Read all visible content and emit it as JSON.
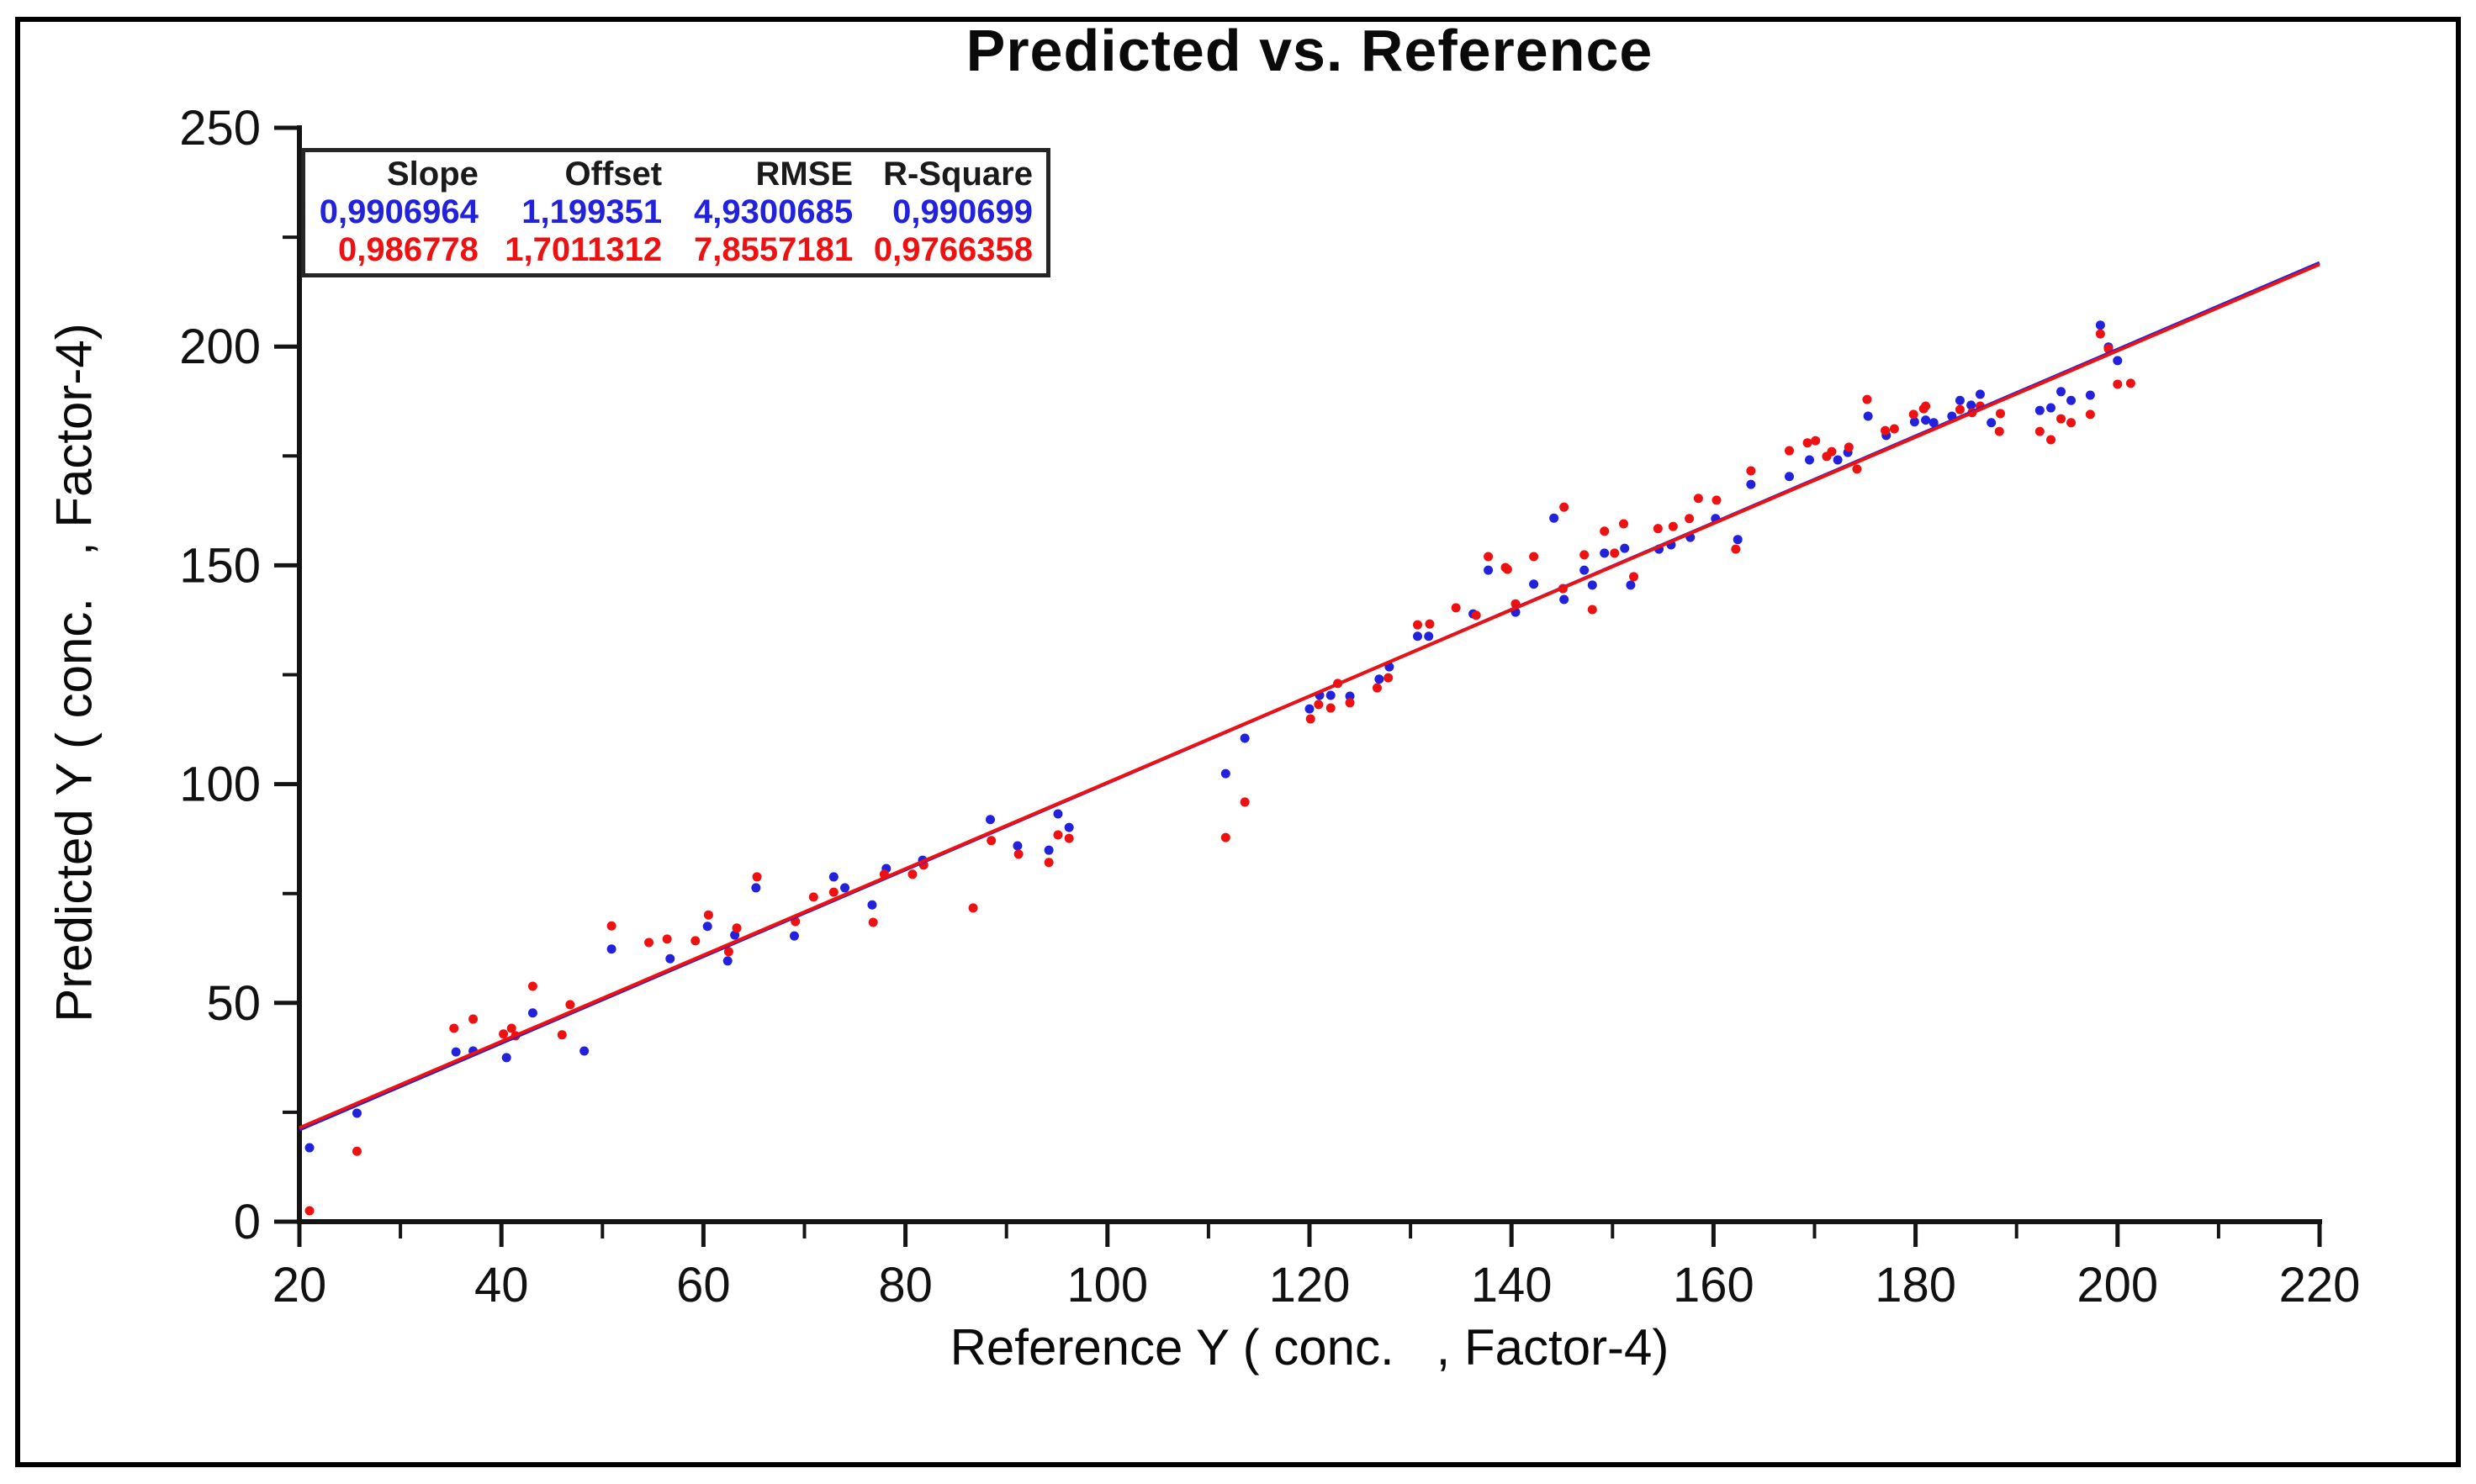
{
  "title": "Predicted vs. Reference",
  "colors": {
    "background": "#ffffff",
    "frame_border": "#000000",
    "axis": "#141414",
    "blue_series": "#2222dd",
    "red_series": "#ee1111"
  },
  "stats_table": {
    "headers": [
      "Slope",
      "Offset",
      "RMSE",
      "R-Square"
    ],
    "rows": [
      {
        "color": "#2222dd",
        "values": [
          "0,9906964",
          "1,199351",
          "4,9300685",
          "0,990699"
        ]
      },
      {
        "color": "#ee1111",
        "values": [
          "0,986778",
          "1,7011312",
          "7,8557181",
          "0,9766358"
        ]
      }
    ]
  },
  "chart_data": {
    "type": "scatter",
    "title": "Predicted vs. Reference",
    "xlabel": "Reference Y ( conc.   , Factor-4)",
    "ylabel": "Predicted Y ( conc.   , Factor-4)",
    "xlim": [
      20,
      220
    ],
    "ylim": [
      0,
      250
    ],
    "grid": false,
    "legend_position": "none",
    "axis_color": "#141414",
    "x_ticks_major": [
      20,
      40,
      60,
      80,
      100,
      120,
      140,
      160,
      180,
      200,
      220
    ],
    "x_ticks_minor": [
      30,
      50,
      70,
      90,
      110,
      130,
      150,
      170,
      190,
      210
    ],
    "y_ticks_major": [
      0,
      50,
      100,
      150,
      200,
      250
    ],
    "y_ticks_minor": [
      25,
      75,
      125,
      175,
      225
    ],
    "series": [
      {
        "name": "blue-series",
        "color": "#2222dd",
        "fit": {
          "slope": 0.9906964,
          "offset": 1.199351,
          "rmse": 4.9300685,
          "r_square": 0.990699
        },
        "points": [
          [
            21.0,
            16.9
          ],
          [
            25.7,
            24.8
          ],
          [
            35.5,
            38.8
          ],
          [
            37.2,
            39.0
          ],
          [
            40.5,
            37.5
          ],
          [
            43.1,
            47.7
          ],
          [
            48.2,
            39.0
          ],
          [
            50.9,
            62.3
          ],
          [
            56.7,
            60.1
          ],
          [
            60.4,
            67.5
          ],
          [
            62.4,
            59.6
          ],
          [
            63.1,
            65.5
          ],
          [
            65.2,
            76.3
          ],
          [
            69.0,
            65.3
          ],
          [
            72.9,
            78.8
          ],
          [
            74.0,
            76.3
          ],
          [
            76.7,
            72.4
          ],
          [
            78.1,
            80.7
          ],
          [
            81.7,
            82.6
          ],
          [
            88.4,
            91.9
          ],
          [
            91.1,
            85.9
          ],
          [
            94.2,
            84.9
          ],
          [
            95.1,
            93.2
          ],
          [
            96.2,
            90.1
          ],
          [
            111.7,
            102.4
          ],
          [
            113.6,
            110.5
          ],
          [
            120.0,
            117.2
          ],
          [
            121.0,
            120.3
          ],
          [
            122.1,
            120.3
          ],
          [
            124.0,
            120.1
          ],
          [
            126.9,
            124.0
          ],
          [
            127.9,
            126.8
          ],
          [
            130.7,
            133.8
          ],
          [
            131.8,
            133.8
          ],
          [
            136.2,
            138.9
          ],
          [
            137.7,
            148.9
          ],
          [
            140.4,
            139.3
          ],
          [
            142.2,
            145.7
          ],
          [
            144.2,
            160.8
          ],
          [
            145.2,
            142.2
          ],
          [
            147.2,
            148.9
          ],
          [
            148.0,
            145.5
          ],
          [
            149.2,
            152.8
          ],
          [
            151.2,
            153.9
          ],
          [
            151.8,
            145.5
          ],
          [
            154.6,
            153.7
          ],
          [
            155.8,
            154.7
          ],
          [
            157.7,
            156.4
          ],
          [
            160.2,
            160.7
          ],
          [
            162.4,
            155.9
          ],
          [
            163.7,
            168.5
          ],
          [
            167.5,
            170.3
          ],
          [
            169.5,
            174.1
          ],
          [
            172.3,
            174.1
          ],
          [
            173.3,
            175.8
          ],
          [
            175.3,
            184.1
          ],
          [
            177.1,
            179.7
          ],
          [
            179.9,
            182.8
          ],
          [
            181.0,
            183.2
          ],
          [
            181.8,
            182.6
          ],
          [
            183.6,
            184.1
          ],
          [
            184.4,
            187.7
          ],
          [
            185.5,
            186.6
          ],
          [
            186.4,
            189.1
          ],
          [
            187.5,
            182.6
          ],
          [
            192.3,
            185.4
          ],
          [
            193.4,
            186.0
          ],
          [
            194.4,
            189.7
          ],
          [
            195.4,
            187.7
          ],
          [
            197.3,
            188.9
          ],
          [
            198.3,
            204.9
          ],
          [
            199.1,
            199.9
          ],
          [
            200.0,
            196.8
          ]
        ]
      },
      {
        "name": "red-series",
        "color": "#ee1111",
        "fit": {
          "slope": 0.986778,
          "offset": 1.7011312,
          "rmse": 7.8557181,
          "r_square": 0.9766358
        },
        "points": [
          [
            21.0,
            2.5
          ],
          [
            25.7,
            16.1
          ],
          [
            35.3,
            44.2
          ],
          [
            37.2,
            46.3
          ],
          [
            40.2,
            42.9
          ],
          [
            41.0,
            44.2
          ],
          [
            41.4,
            42.5
          ],
          [
            43.1,
            53.8
          ],
          [
            46.0,
            42.7
          ],
          [
            46.8,
            49.6
          ],
          [
            50.9,
            67.6
          ],
          [
            54.6,
            63.8
          ],
          [
            56.4,
            64.6
          ],
          [
            59.2,
            64.2
          ],
          [
            60.5,
            70.1
          ],
          [
            62.5,
            61.7
          ],
          [
            63.3,
            67.1
          ],
          [
            65.3,
            78.8
          ],
          [
            69.1,
            68.6
          ],
          [
            70.9,
            74.2
          ],
          [
            72.9,
            75.3
          ],
          [
            76.8,
            68.4
          ],
          [
            77.9,
            79.4
          ],
          [
            80.7,
            79.4
          ],
          [
            81.8,
            81.5
          ],
          [
            86.7,
            71.7
          ],
          [
            88.5,
            87.1
          ],
          [
            91.2,
            84.0
          ],
          [
            94.2,
            82.1
          ],
          [
            95.1,
            88.4
          ],
          [
            96.2,
            87.6
          ],
          [
            111.7,
            87.8
          ],
          [
            113.6,
            95.9
          ],
          [
            120.1,
            114.9
          ],
          [
            120.9,
            118.2
          ],
          [
            122.1,
            117.4
          ],
          [
            122.8,
            123.0
          ],
          [
            124.0,
            118.6
          ],
          [
            126.7,
            122.0
          ],
          [
            127.8,
            124.3
          ],
          [
            130.7,
            136.4
          ],
          [
            131.9,
            136.6
          ],
          [
            134.5,
            140.3
          ],
          [
            136.5,
            138.6
          ],
          [
            137.7,
            152.0
          ],
          [
            139.4,
            149.5
          ],
          [
            139.6,
            149.1
          ],
          [
            140.4,
            141.2
          ],
          [
            142.2,
            152.0
          ],
          [
            145.1,
            144.7
          ],
          [
            145.2,
            163.3
          ],
          [
            147.2,
            152.4
          ],
          [
            148.0,
            139.9
          ],
          [
            149.2,
            157.8
          ],
          [
            150.2,
            152.8
          ],
          [
            151.1,
            159.5
          ],
          [
            152.1,
            147.4
          ],
          [
            154.5,
            158.4
          ],
          [
            156.0,
            158.9
          ],
          [
            157.6,
            160.7
          ],
          [
            158.5,
            165.3
          ],
          [
            160.3,
            164.9
          ],
          [
            162.2,
            153.7
          ],
          [
            163.7,
            171.6
          ],
          [
            167.5,
            176.2
          ],
          [
            169.3,
            178.0
          ],
          [
            170.1,
            178.5
          ],
          [
            171.2,
            174.9
          ],
          [
            171.7,
            176.0
          ],
          [
            173.4,
            177.0
          ],
          [
            174.2,
            172.0
          ],
          [
            175.2,
            187.9
          ],
          [
            177.0,
            180.8
          ],
          [
            177.9,
            181.2
          ],
          [
            179.8,
            184.5
          ],
          [
            180.8,
            185.8
          ],
          [
            181.0,
            186.4
          ],
          [
            184.4,
            185.6
          ],
          [
            185.6,
            184.9
          ],
          [
            186.4,
            186.4
          ],
          [
            188.3,
            180.6
          ],
          [
            188.4,
            184.7
          ],
          [
            192.3,
            180.6
          ],
          [
            193.4,
            178.7
          ],
          [
            194.4,
            183.5
          ],
          [
            195.4,
            182.6
          ],
          [
            197.3,
            184.5
          ],
          [
            198.3,
            202.9
          ],
          [
            199.1,
            199.5
          ],
          [
            200.0,
            191.4
          ],
          [
            201.3,
            191.6
          ]
        ]
      }
    ]
  }
}
